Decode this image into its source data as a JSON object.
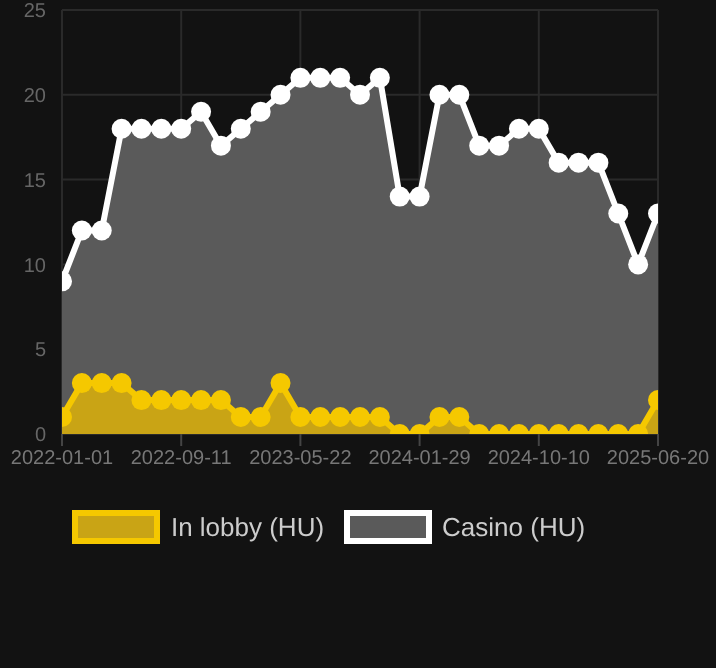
{
  "chart_data": {
    "type": "area",
    "categories": [
      "2022-01-01",
      null,
      null,
      null,
      null,
      null,
      "2022-09-11",
      null,
      null,
      null,
      null,
      null,
      "2023-05-22",
      null,
      null,
      null,
      null,
      null,
      "2024-01-29",
      null,
      null,
      null,
      null,
      null,
      "2024-10-10",
      null,
      null,
      null,
      null,
      null,
      "2025-06-20"
    ],
    "series": [
      {
        "name": "In lobby (HU)",
        "color": "#f5c800",
        "values": [
          1,
          3,
          3,
          3,
          2,
          2,
          2,
          2,
          2,
          1,
          1,
          3,
          1,
          1,
          1,
          1,
          1,
          0,
          0,
          1,
          1,
          0,
          0,
          0,
          0,
          0,
          0,
          0,
          0,
          0,
          2
        ]
      },
      {
        "name": "Casino (HU)",
        "color": "#ffffff",
        "values": [
          9,
          12,
          12,
          18,
          18,
          18,
          18,
          19,
          17,
          18,
          19,
          20,
          21,
          21,
          21,
          20,
          21,
          14,
          14,
          20,
          20,
          17,
          17,
          18,
          18,
          16,
          16,
          16,
          13,
          10,
          13
        ]
      }
    ],
    "ylim": [
      0,
      25
    ],
    "yticks": [
      0,
      5,
      10,
      15,
      20,
      25
    ],
    "grid": true,
    "legend": "bottom",
    "marker": "circle",
    "line_style": "solid"
  }
}
